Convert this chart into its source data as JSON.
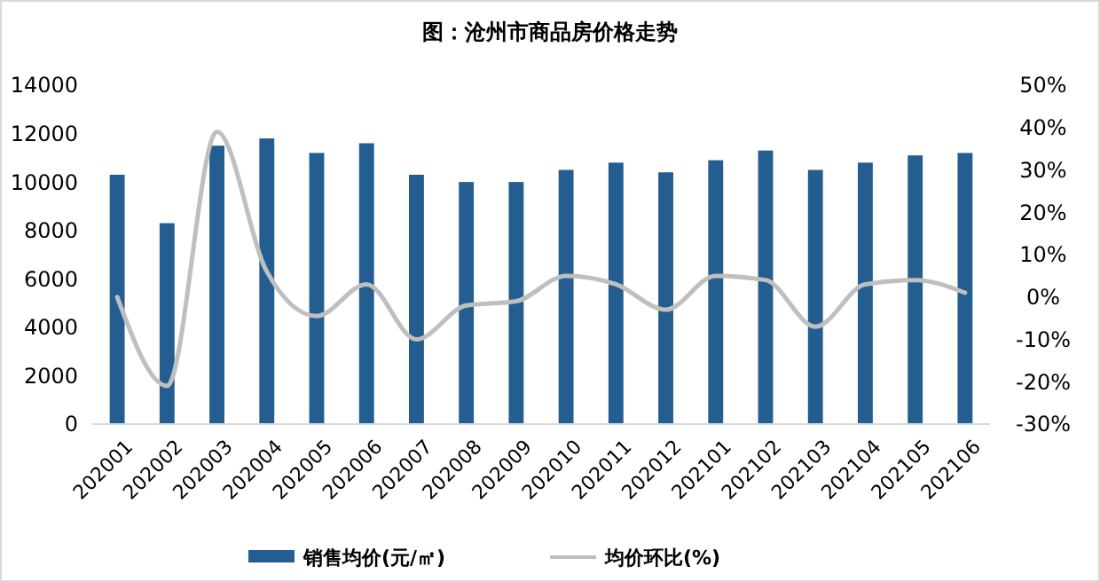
{
  "chart_data": {
    "type": "bar",
    "title": "图：沧州市商品房价格走势",
    "categories": [
      "202001",
      "202002",
      "202003",
      "202004",
      "202005",
      "202006",
      "202007",
      "202008",
      "202009",
      "202010",
      "202011",
      "202012",
      "202101",
      "202102",
      "202103",
      "202104",
      "202105",
      "202106"
    ],
    "series": [
      {
        "name": "销售均价(元/㎡)",
        "color": "#245e91",
        "values": [
          10300,
          8300,
          11500,
          11800,
          11200,
          11600,
          10300,
          10000,
          10000,
          10500,
          10800,
          10400,
          10900,
          11300,
          10500,
          10800,
          11100,
          11200
        ]
      },
      {
        "name": "均价环比(%)",
        "type": "line",
        "axis": "y2",
        "color": "#bfbfbf",
        "values": [
          0,
          -21,
          39,
          6,
          -4.5,
          3,
          -10,
          -2,
          -1,
          5,
          3,
          -3,
          5,
          4,
          -7,
          3,
          4,
          1
        ]
      }
    ],
    "ylim": [
      0,
      14000
    ],
    "yticks": [
      0,
      2000,
      4000,
      6000,
      8000,
      10000,
      12000,
      14000
    ],
    "y2lim": [
      -30,
      50
    ],
    "y2ticks": [
      {
        "value": -30,
        "label": "-30%"
      },
      {
        "value": -20,
        "label": "-20%"
      },
      {
        "value": -10,
        "label": "-10%"
      },
      {
        "value": 0,
        "label": "0%"
      },
      {
        "value": 10,
        "label": "10%"
      },
      {
        "value": 20,
        "label": "20%"
      },
      {
        "value": 30,
        "label": "30%"
      },
      {
        "value": 40,
        "label": "40%"
      },
      {
        "value": 50,
        "label": "50%"
      }
    ],
    "legend": "bottom",
    "grid": false,
    "marker": "none"
  }
}
